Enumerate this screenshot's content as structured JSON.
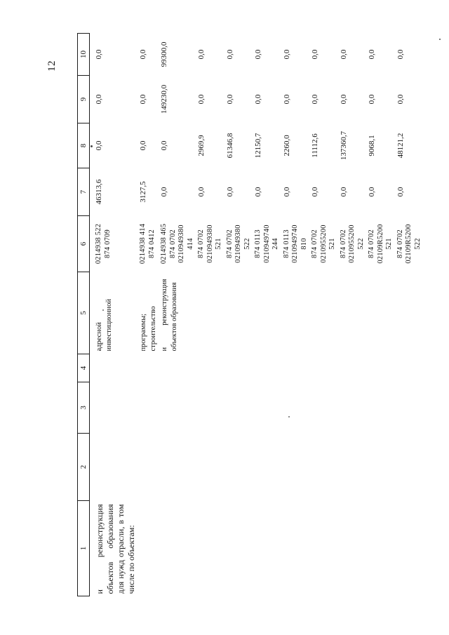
{
  "page": {
    "number": "12"
  },
  "table": {
    "headers": [
      "1",
      "2",
      "3",
      "4",
      "5",
      "6",
      "7",
      "8",
      "9",
      "10"
    ],
    "rows": [
      {
        "c1": [
          "и реконструкция",
          "объектов образования",
          "для нужд отрасли, в том",
          "числе по объектам:"
        ],
        "c2": "",
        "c3": "",
        "c4": "",
        "c5": [
          "адресной",
          "инвестиционной"
        ],
        "c6": [
          "0214938 522",
          "874 0709"
        ],
        "c7": "46313,6",
        "c8": "0,0",
        "c9": "0,0",
        "c10": "0,0"
      },
      {
        "c1": [],
        "c2": "",
        "c3": "",
        "c4": "",
        "c5": [
          "программы;",
          "строительство"
        ],
        "c6": [
          "0214938 414",
          "874 0412"
        ],
        "c7": "3127,5",
        "c8": "0,0",
        "c9": "0,0",
        "c10": "0,0"
      },
      {
        "c1": [],
        "c2": "",
        "c3": "",
        "c4": "",
        "c5": [
          "и реконструкция",
          "объектов образования"
        ],
        "c6": [
          "0214938 465",
          "874 0702",
          "0210949380",
          "414"
        ],
        "c7": "0,0",
        "c8": "0,0",
        "c9": "149230,0",
        "c10": "99300,0"
      },
      {
        "c1": [],
        "c2": "",
        "c3": "",
        "c4": "",
        "c5": [],
        "c6": [
          "874 0702",
          "0210949380",
          "521"
        ],
        "c7": "0,0",
        "c8": "2969,9",
        "c9": "0,0",
        "c10": "0,0"
      },
      {
        "c1": [],
        "c2": "",
        "c3": "",
        "c4": "",
        "c5": [],
        "c6": [
          "874 0702",
          "0210949380",
          "522"
        ],
        "c7": "0,0",
        "c8": "61346,8",
        "c9": "0,0",
        "c10": "0,0"
      },
      {
        "c1": [],
        "c2": "",
        "c3": "",
        "c4": "",
        "c5": [],
        "c6": [
          "874 0113",
          "0210949740",
          "244"
        ],
        "c7": "0,0",
        "c8": "12150,7",
        "c9": "0,0",
        "c10": "0,0"
      },
      {
        "c1": [],
        "c2": "",
        "c3": "",
        "c4": "",
        "c5": [],
        "c6": [
          "874 0113",
          "0210949740",
          "810"
        ],
        "c7": "0,0",
        "c8": "2260,0",
        "c9": "0,0",
        "c10": "0,0"
      },
      {
        "c1": [],
        "c2": "",
        "c3": "",
        "c4": "",
        "c5": [],
        "c6": [
          "874 0702",
          "0210955200",
          "521"
        ],
        "c7": "0,0",
        "c8": "11112,6",
        "c9": "0,0",
        "c10": "0,0"
      },
      {
        "c1": [],
        "c2": "",
        "c3": "",
        "c4": "",
        "c5": [],
        "c6": [
          "874 0702",
          "0210955200",
          "522"
        ],
        "c7": "0,0",
        "c8": "137360,7",
        "c9": "0,0",
        "c10": "0,0"
      },
      {
        "c1": [],
        "c2": "",
        "c3": "",
        "c4": "",
        "c5": [],
        "c6": [
          "874 0702",
          "02109R5200",
          "521"
        ],
        "c7": "0,0",
        "c8": "9068,1",
        "c9": "0,0",
        "c10": "0,0"
      },
      {
        "c1": [],
        "c2": "",
        "c3": "",
        "c4": "",
        "c5": [],
        "c6": [
          "874 0702",
          "02109R5200",
          "522"
        ],
        "c7": "0,0",
        "c8": "48121,2",
        "c9": "0,0",
        "c10": "0,0"
      }
    ]
  }
}
